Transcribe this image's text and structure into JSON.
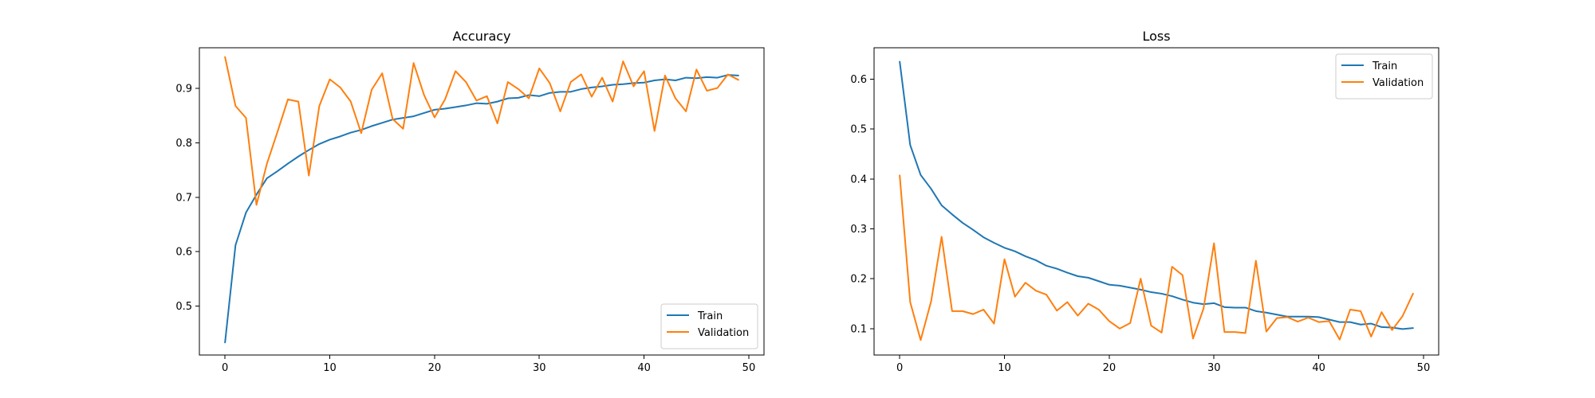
{
  "figure": {
    "background": "#ffffff"
  },
  "chart_data": [
    {
      "type": "line",
      "title": "Accuracy",
      "xlabel": "",
      "ylabel": "",
      "xlim": [
        -2.45,
        51.45
      ],
      "ylim": [
        0.41,
        0.975
      ],
      "xticks": [
        0,
        10,
        20,
        30,
        40,
        50
      ],
      "yticks": [
        0.5,
        0.6,
        0.7,
        0.8,
        0.9
      ],
      "ytick_decimals": 1,
      "legend": "lower-right",
      "grid": false,
      "series": [
        {
          "name": "Train",
          "color": "#1f77b4",
          "x": [
            0,
            1,
            2,
            3,
            4,
            5,
            6,
            7,
            8,
            9,
            10,
            11,
            12,
            13,
            14,
            15,
            16,
            17,
            18,
            19,
            20,
            21,
            22,
            23,
            24,
            25,
            26,
            27,
            28,
            29,
            30,
            31,
            32,
            33,
            34,
            35,
            36,
            37,
            38,
            39,
            40,
            41,
            42,
            43,
            44,
            45,
            46,
            47,
            48,
            49
          ],
          "values": [
            0.433,
            0.612,
            0.672,
            0.705,
            0.735,
            0.748,
            0.762,
            0.775,
            0.787,
            0.798,
            0.806,
            0.812,
            0.819,
            0.824,
            0.831,
            0.837,
            0.843,
            0.846,
            0.849,
            0.855,
            0.861,
            0.863,
            0.866,
            0.869,
            0.873,
            0.872,
            0.876,
            0.882,
            0.883,
            0.888,
            0.886,
            0.892,
            0.894,
            0.894,
            0.899,
            0.902,
            0.904,
            0.907,
            0.908,
            0.91,
            0.911,
            0.915,
            0.917,
            0.915,
            0.92,
            0.919,
            0.921,
            0.92,
            0.925,
            0.924
          ]
        },
        {
          "name": "Validation",
          "color": "#ff7f0e",
          "x": [
            0,
            1,
            2,
            3,
            4,
            5,
            6,
            7,
            8,
            9,
            10,
            11,
            12,
            13,
            14,
            15,
            16,
            17,
            18,
            19,
            20,
            21,
            22,
            23,
            24,
            25,
            26,
            27,
            28,
            29,
            30,
            31,
            32,
            33,
            34,
            35,
            36,
            37,
            38,
            39,
            40,
            41,
            42,
            43,
            44,
            45,
            46,
            47,
            48,
            49
          ],
          "values": [
            0.958,
            0.868,
            0.846,
            0.686,
            0.762,
            0.82,
            0.88,
            0.876,
            0.74,
            0.868,
            0.917,
            0.902,
            0.876,
            0.818,
            0.898,
            0.928,
            0.844,
            0.826,
            0.947,
            0.888,
            0.847,
            0.88,
            0.932,
            0.912,
            0.878,
            0.886,
            0.836,
            0.912,
            0.899,
            0.882,
            0.937,
            0.91,
            0.858,
            0.912,
            0.926,
            0.885,
            0.92,
            0.876,
            0.95,
            0.904,
            0.932,
            0.822,
            0.924,
            0.882,
            0.858,
            0.935,
            0.896,
            0.901,
            0.926,
            0.916
          ]
        }
      ]
    },
    {
      "type": "line",
      "title": "Loss",
      "xlabel": "",
      "ylabel": "",
      "xlim": [
        -2.45,
        51.45
      ],
      "ylim": [
        0.047,
        0.663
      ],
      "xticks": [
        0,
        10,
        20,
        30,
        40,
        50
      ],
      "yticks": [
        0.1,
        0.2,
        0.3,
        0.4,
        0.5,
        0.6
      ],
      "ytick_decimals": 1,
      "legend": "upper-right",
      "grid": false,
      "series": [
        {
          "name": "Train",
          "color": "#1f77b4",
          "x": [
            0,
            1,
            2,
            3,
            4,
            5,
            6,
            7,
            8,
            9,
            10,
            11,
            12,
            13,
            14,
            15,
            16,
            17,
            18,
            19,
            20,
            21,
            22,
            23,
            24,
            25,
            26,
            27,
            28,
            29,
            30,
            31,
            32,
            33,
            34,
            35,
            36,
            37,
            38,
            39,
            40,
            41,
            42,
            43,
            44,
            45,
            46,
            47,
            48,
            49
          ],
          "values": [
            0.635,
            0.468,
            0.408,
            0.38,
            0.347,
            0.329,
            0.312,
            0.298,
            0.283,
            0.272,
            0.262,
            0.255,
            0.245,
            0.237,
            0.226,
            0.22,
            0.212,
            0.205,
            0.202,
            0.195,
            0.188,
            0.186,
            0.182,
            0.178,
            0.173,
            0.17,
            0.165,
            0.158,
            0.152,
            0.149,
            0.151,
            0.143,
            0.142,
            0.142,
            0.135,
            0.132,
            0.128,
            0.124,
            0.124,
            0.124,
            0.123,
            0.118,
            0.113,
            0.113,
            0.108,
            0.11,
            0.103,
            0.102,
            0.099,
            0.101
          ]
        },
        {
          "name": "Validation",
          "color": "#ff7f0e",
          "x": [
            0,
            1,
            2,
            3,
            4,
            5,
            6,
            7,
            8,
            9,
            10,
            11,
            12,
            13,
            14,
            15,
            16,
            17,
            18,
            19,
            20,
            21,
            22,
            23,
            24,
            25,
            26,
            27,
            28,
            29,
            30,
            31,
            32,
            33,
            34,
            35,
            36,
            37,
            38,
            39,
            40,
            41,
            42,
            43,
            44,
            45,
            46,
            47,
            48,
            49
          ],
          "values": [
            0.407,
            0.153,
            0.077,
            0.155,
            0.284,
            0.135,
            0.135,
            0.129,
            0.138,
            0.11,
            0.239,
            0.164,
            0.192,
            0.176,
            0.168,
            0.136,
            0.153,
            0.126,
            0.15,
            0.138,
            0.115,
            0.1,
            0.111,
            0.2,
            0.106,
            0.092,
            0.224,
            0.207,
            0.08,
            0.14,
            0.271,
            0.093,
            0.093,
            0.091,
            0.236,
            0.094,
            0.121,
            0.123,
            0.114,
            0.122,
            0.113,
            0.115,
            0.078,
            0.138,
            0.135,
            0.084,
            0.133,
            0.097,
            0.125,
            0.17
          ]
        }
      ]
    }
  ]
}
